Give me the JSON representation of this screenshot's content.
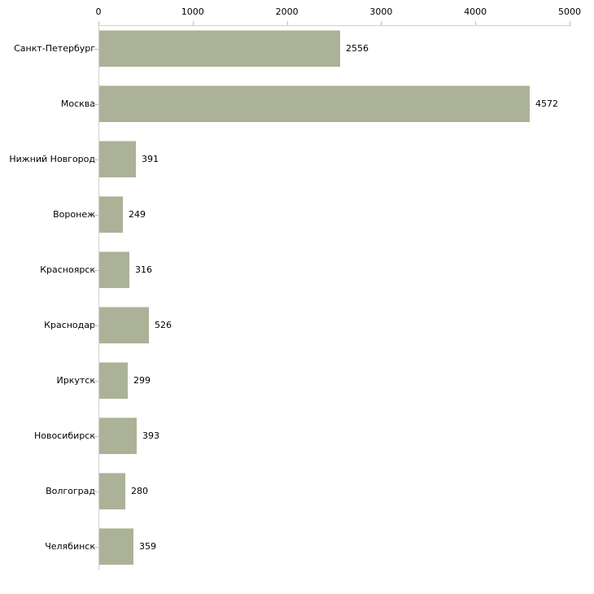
{
  "chart_data": {
    "type": "bar",
    "orientation": "horizontal",
    "title": "",
    "xlabel": "",
    "ylabel": "",
    "grid": false,
    "legend": "none",
    "categories": [
      "Санкт-Петербург",
      "Москва",
      "Нижний Новгород",
      "Воронеж",
      "Красноярск",
      "Краснодар",
      "Иркутск",
      "Новосибирск",
      "Волгоград",
      "Челябинск"
    ],
    "values": [
      2556,
      4572,
      391,
      249,
      316,
      526,
      299,
      393,
      280,
      359
    ],
    "x_ticks": [
      0,
      1000,
      2000,
      3000,
      4000,
      5000
    ],
    "xlim": [
      0,
      5000
    ],
    "colors": {
      "bar_fill": "#ACB297",
      "bar_highlight": "#CFD3BD",
      "axis_line": "#D3D2CB",
      "tick_mark": "#C2C29E",
      "text": "#000000",
      "background": "#FFFFFF"
    }
  }
}
